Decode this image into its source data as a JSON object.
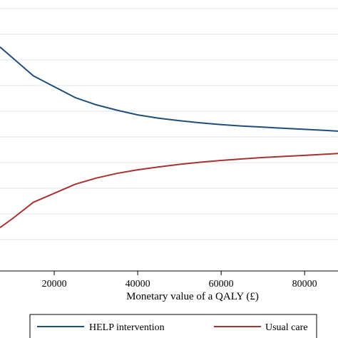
{
  "chart_data": {
    "type": "line",
    "title": "",
    "xlabel": "Monetary value of a QALY (£)",
    "ylabel": "",
    "xlim": [
      7000,
      88000
    ],
    "ylim": [
      0.18,
      0.93
    ],
    "x_ticks": [
      "20000",
      "40000",
      "60000",
      "80000"
    ],
    "x_tick_values": [
      20000,
      40000,
      60000,
      80000
    ],
    "grid": true,
    "legend_position": "bottom",
    "colors": {
      "help": "#1f4e79",
      "usual": "#a83232",
      "grid": "#dbe6ec"
    },
    "series": [
      {
        "name": "HELP intervention",
        "x": [
          7000,
          10000,
          15000,
          20000,
          25000,
          30000,
          35000,
          40000,
          45000,
          50000,
          55000,
          60000,
          65000,
          70000,
          75000,
          80000,
          85000,
          88000
        ],
        "y": [
          0.8,
          0.77,
          0.72,
          0.69,
          0.66,
          0.64,
          0.625,
          0.612,
          0.603,
          0.596,
          0.59,
          0.585,
          0.581,
          0.578,
          0.575,
          0.572,
          0.569,
          0.567
        ]
      },
      {
        "name": "Usual care",
        "x": [
          7000,
          10000,
          15000,
          20000,
          25000,
          30000,
          35000,
          40000,
          45000,
          50000,
          55000,
          60000,
          65000,
          70000,
          75000,
          80000,
          85000,
          88000
        ],
        "y": [
          0.3,
          0.325,
          0.37,
          0.395,
          0.42,
          0.437,
          0.45,
          0.46,
          0.468,
          0.475,
          0.481,
          0.486,
          0.49,
          0.494,
          0.497,
          0.5,
          0.503,
          0.505
        ]
      }
    ]
  }
}
